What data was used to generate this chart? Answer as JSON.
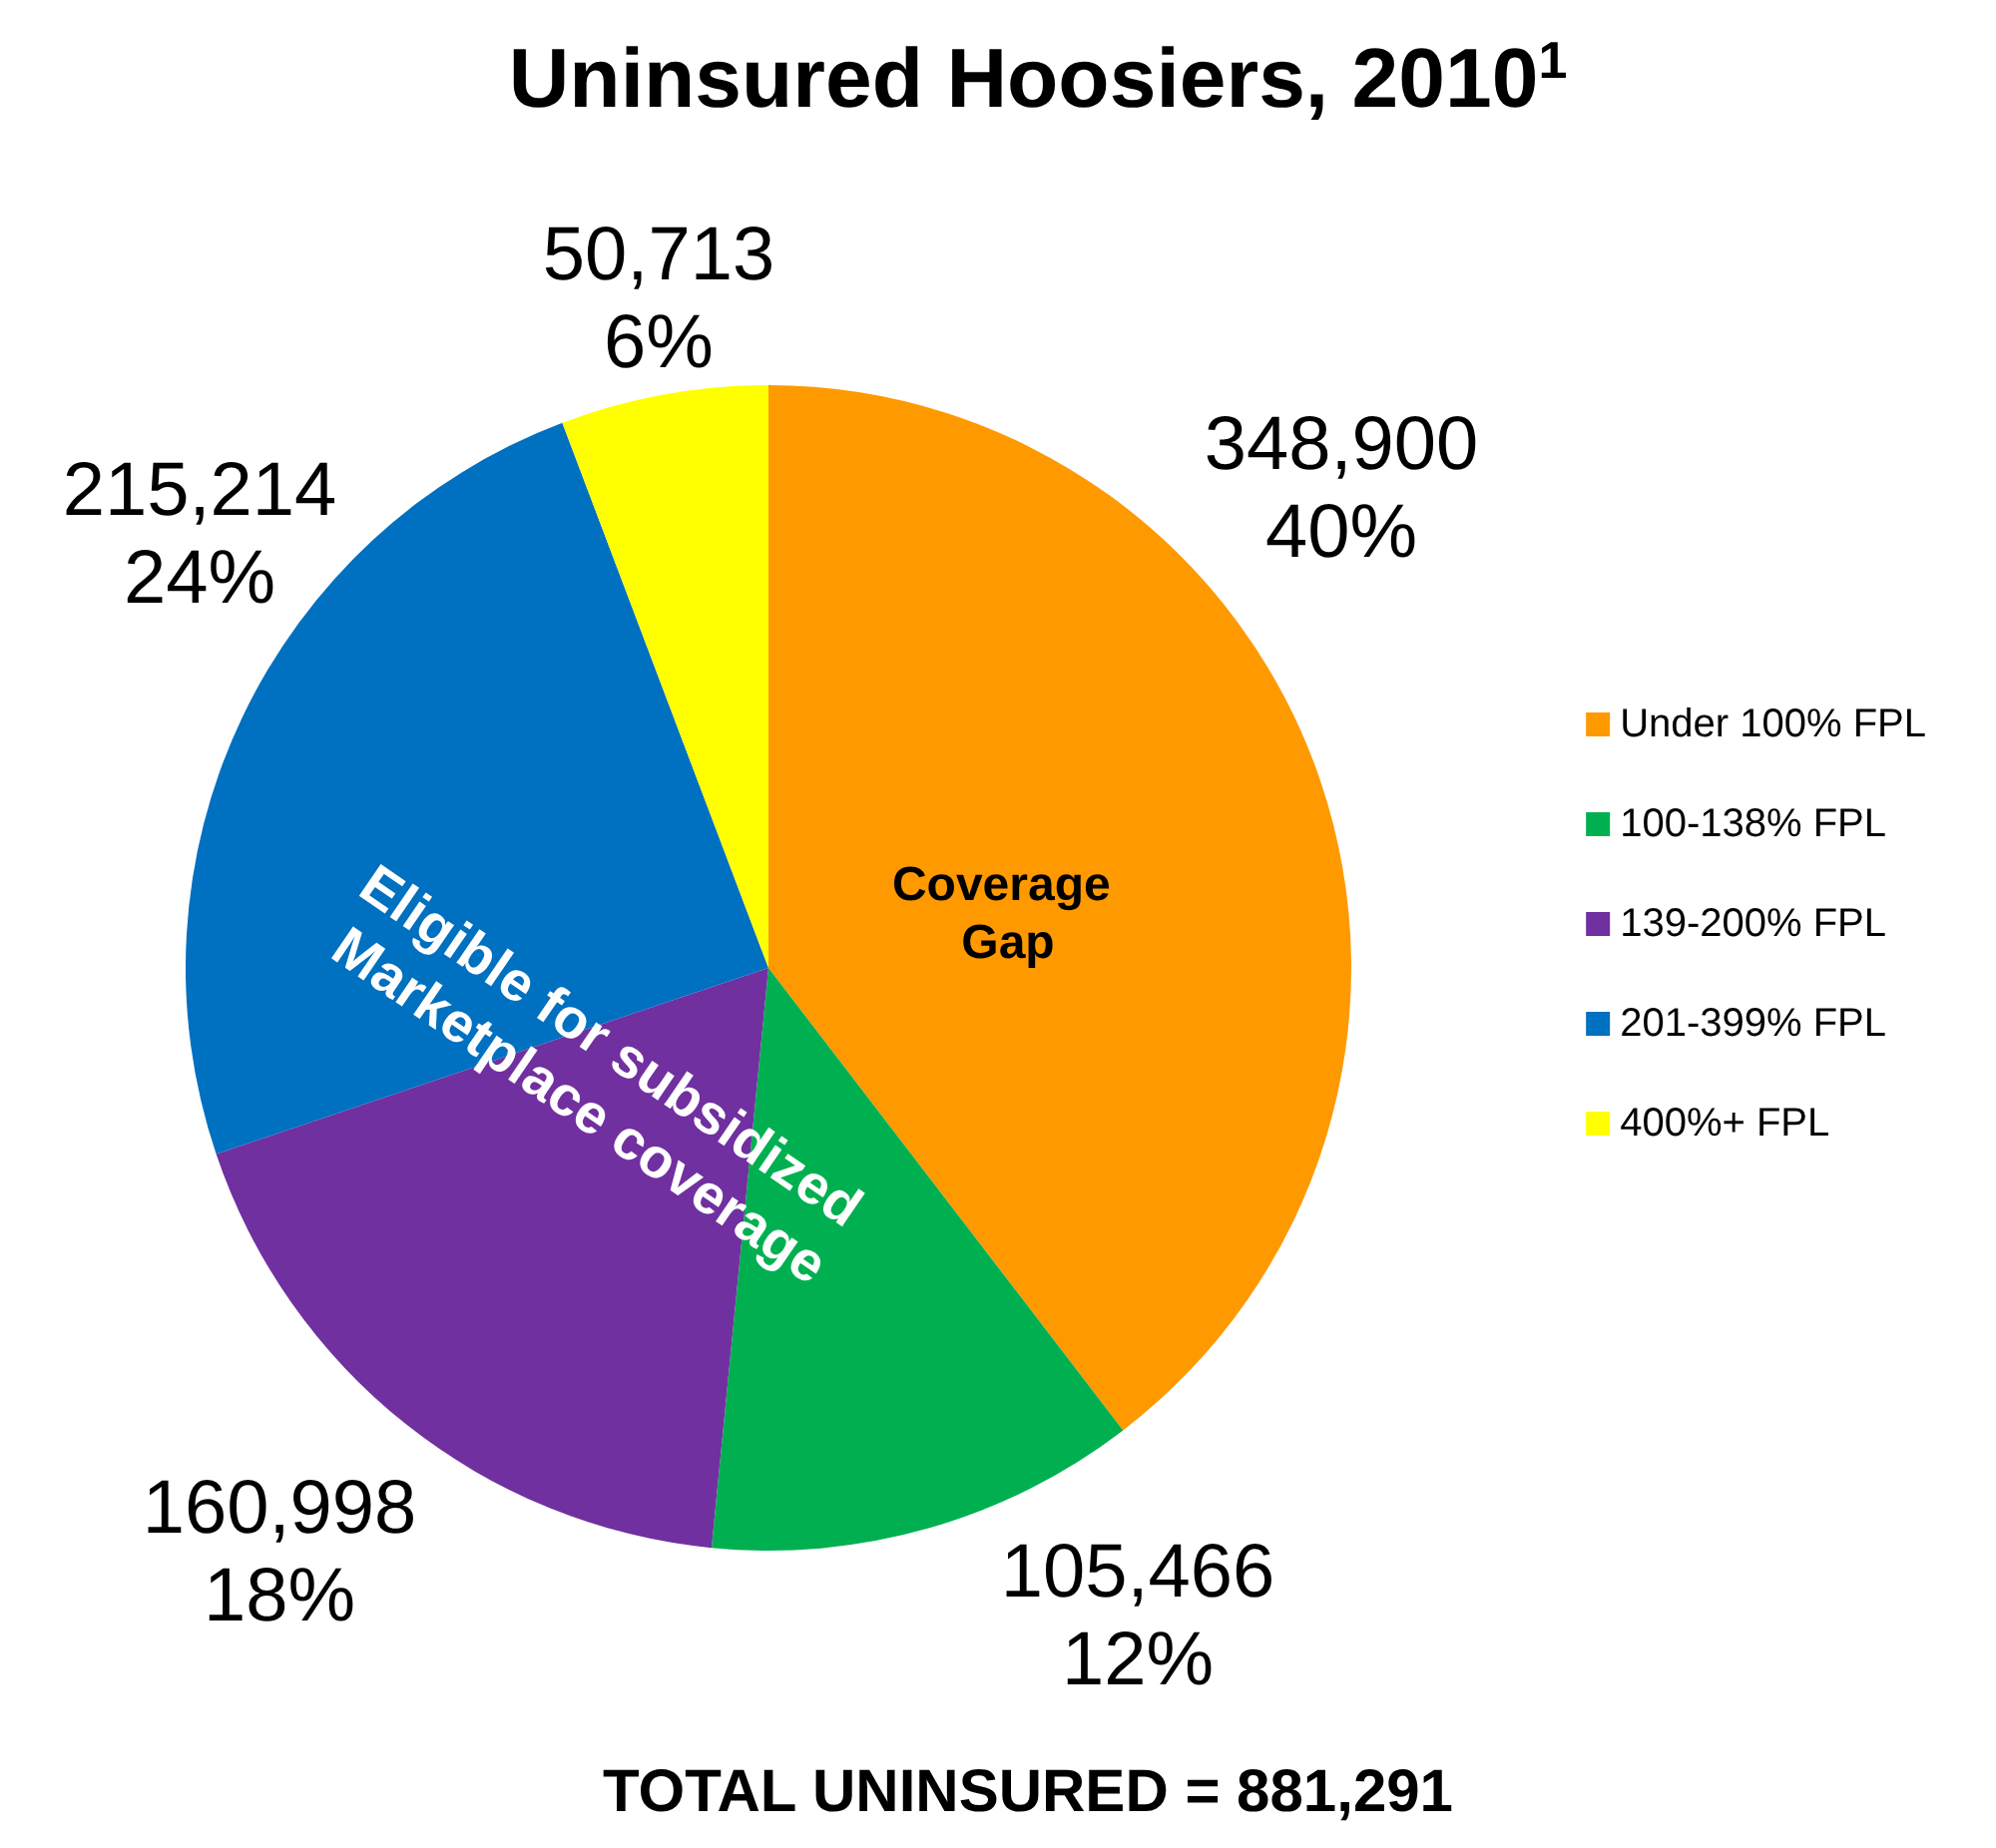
{
  "chart_data": {
    "type": "pie",
    "title": "Uninsured Hoosiers, 2010$^{1}$",
    "categories": [
      "Under 100% FPL",
      "100-138% FPL",
      "139-200% FPL",
      "201-399% FPL",
      "400%+ FPL"
    ],
    "values": [
      348900,
      105466,
      160998,
      215214,
      50713
    ],
    "colors": [
      "#ff9900",
      "#00b050",
      "#7030a0",
      "#0070c0",
      "#ffff00"
    ],
    "value_labels": [
      "348,900\n40%",
      "105,466\n12%",
      "160,998\n18%",
      "215,214\n24%",
      "50,713\n6%"
    ],
    "annotations": [
      "Coverage Gap",
      "Eligible for subsidized Marketplace coverage",
      "TOTAL UNINSURED = 881,291"
    ],
    "legend": "right"
  }
}
